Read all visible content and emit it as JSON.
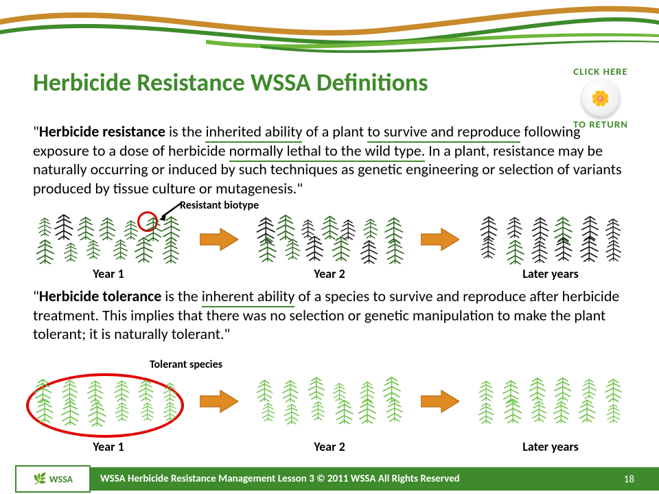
{
  "colors": {
    "title": "#3e8a2c",
    "underline": "#3e8a2c",
    "swoosh_green_dark": "#3e8a2c",
    "swoosh_green_light": "#6fb53a",
    "swoosh_orange": "#c98a2b",
    "arrow_fill": "#e08a24",
    "arrow_stroke": "#b56a12",
    "red": "#e20000",
    "plant_green_dark": "#2f6a23",
    "plant_green_light": "#6fc24a",
    "plant_black": "#1a1a1a",
    "footer_bg": "#3e8a2c"
  },
  "title": "Herbicide Resistance WSSA Definitions",
  "click_here": {
    "top": "CLICK HERE",
    "bottom": "TO RETURN",
    "emoji": "🌼"
  },
  "para1": {
    "q1": "\"",
    "b": "Herbicide resistance",
    "t1": " is the ",
    "u1": "inherited ability",
    "t2": " of a plant ",
    "u2": "to survive and reproduce",
    "t3": " following exposure to a dose of herbicide ",
    "u3": "normally lethal to the wild type.",
    "t4": " In a plant, resistance may be naturally occurring or induced by such techniques as genetic engineering or selection of variants produced by tissue culture or mutagenesis.\""
  },
  "para2": {
    "q1": "\"",
    "b": "Herbicide tolerance",
    "t1": " is the ",
    "u1": "inherent ability",
    "t2": " of a species to survive and reproduce after herbicide treatment. This implies that there was no selection or genetic manipulation to make the plant tolerant; it is naturally tolerant.\""
  },
  "annot": {
    "resistant": "Resistant biotype",
    "tolerant": "Tolerant species"
  },
  "years": {
    "y1": "Year 1",
    "y2": "Year 2",
    "y3": "Later years"
  },
  "footer": {
    "logo": "WSSA",
    "text": "WSSA Herbicide Resistance Management Lesson 3 © 2011 WSSA All Rights Reserved",
    "page": "18"
  },
  "diagrams": {
    "resistance": {
      "stages": [
        {
          "green_dark": 12,
          "black": 1
        },
        {
          "green_dark": 8,
          "black": 5
        },
        {
          "green_dark": 2,
          "black": 10
        }
      ]
    },
    "tolerance": {
      "stages": [
        {
          "green_light": 12
        },
        {
          "green_light": 12
        },
        {
          "green_light": 12
        }
      ]
    }
  }
}
